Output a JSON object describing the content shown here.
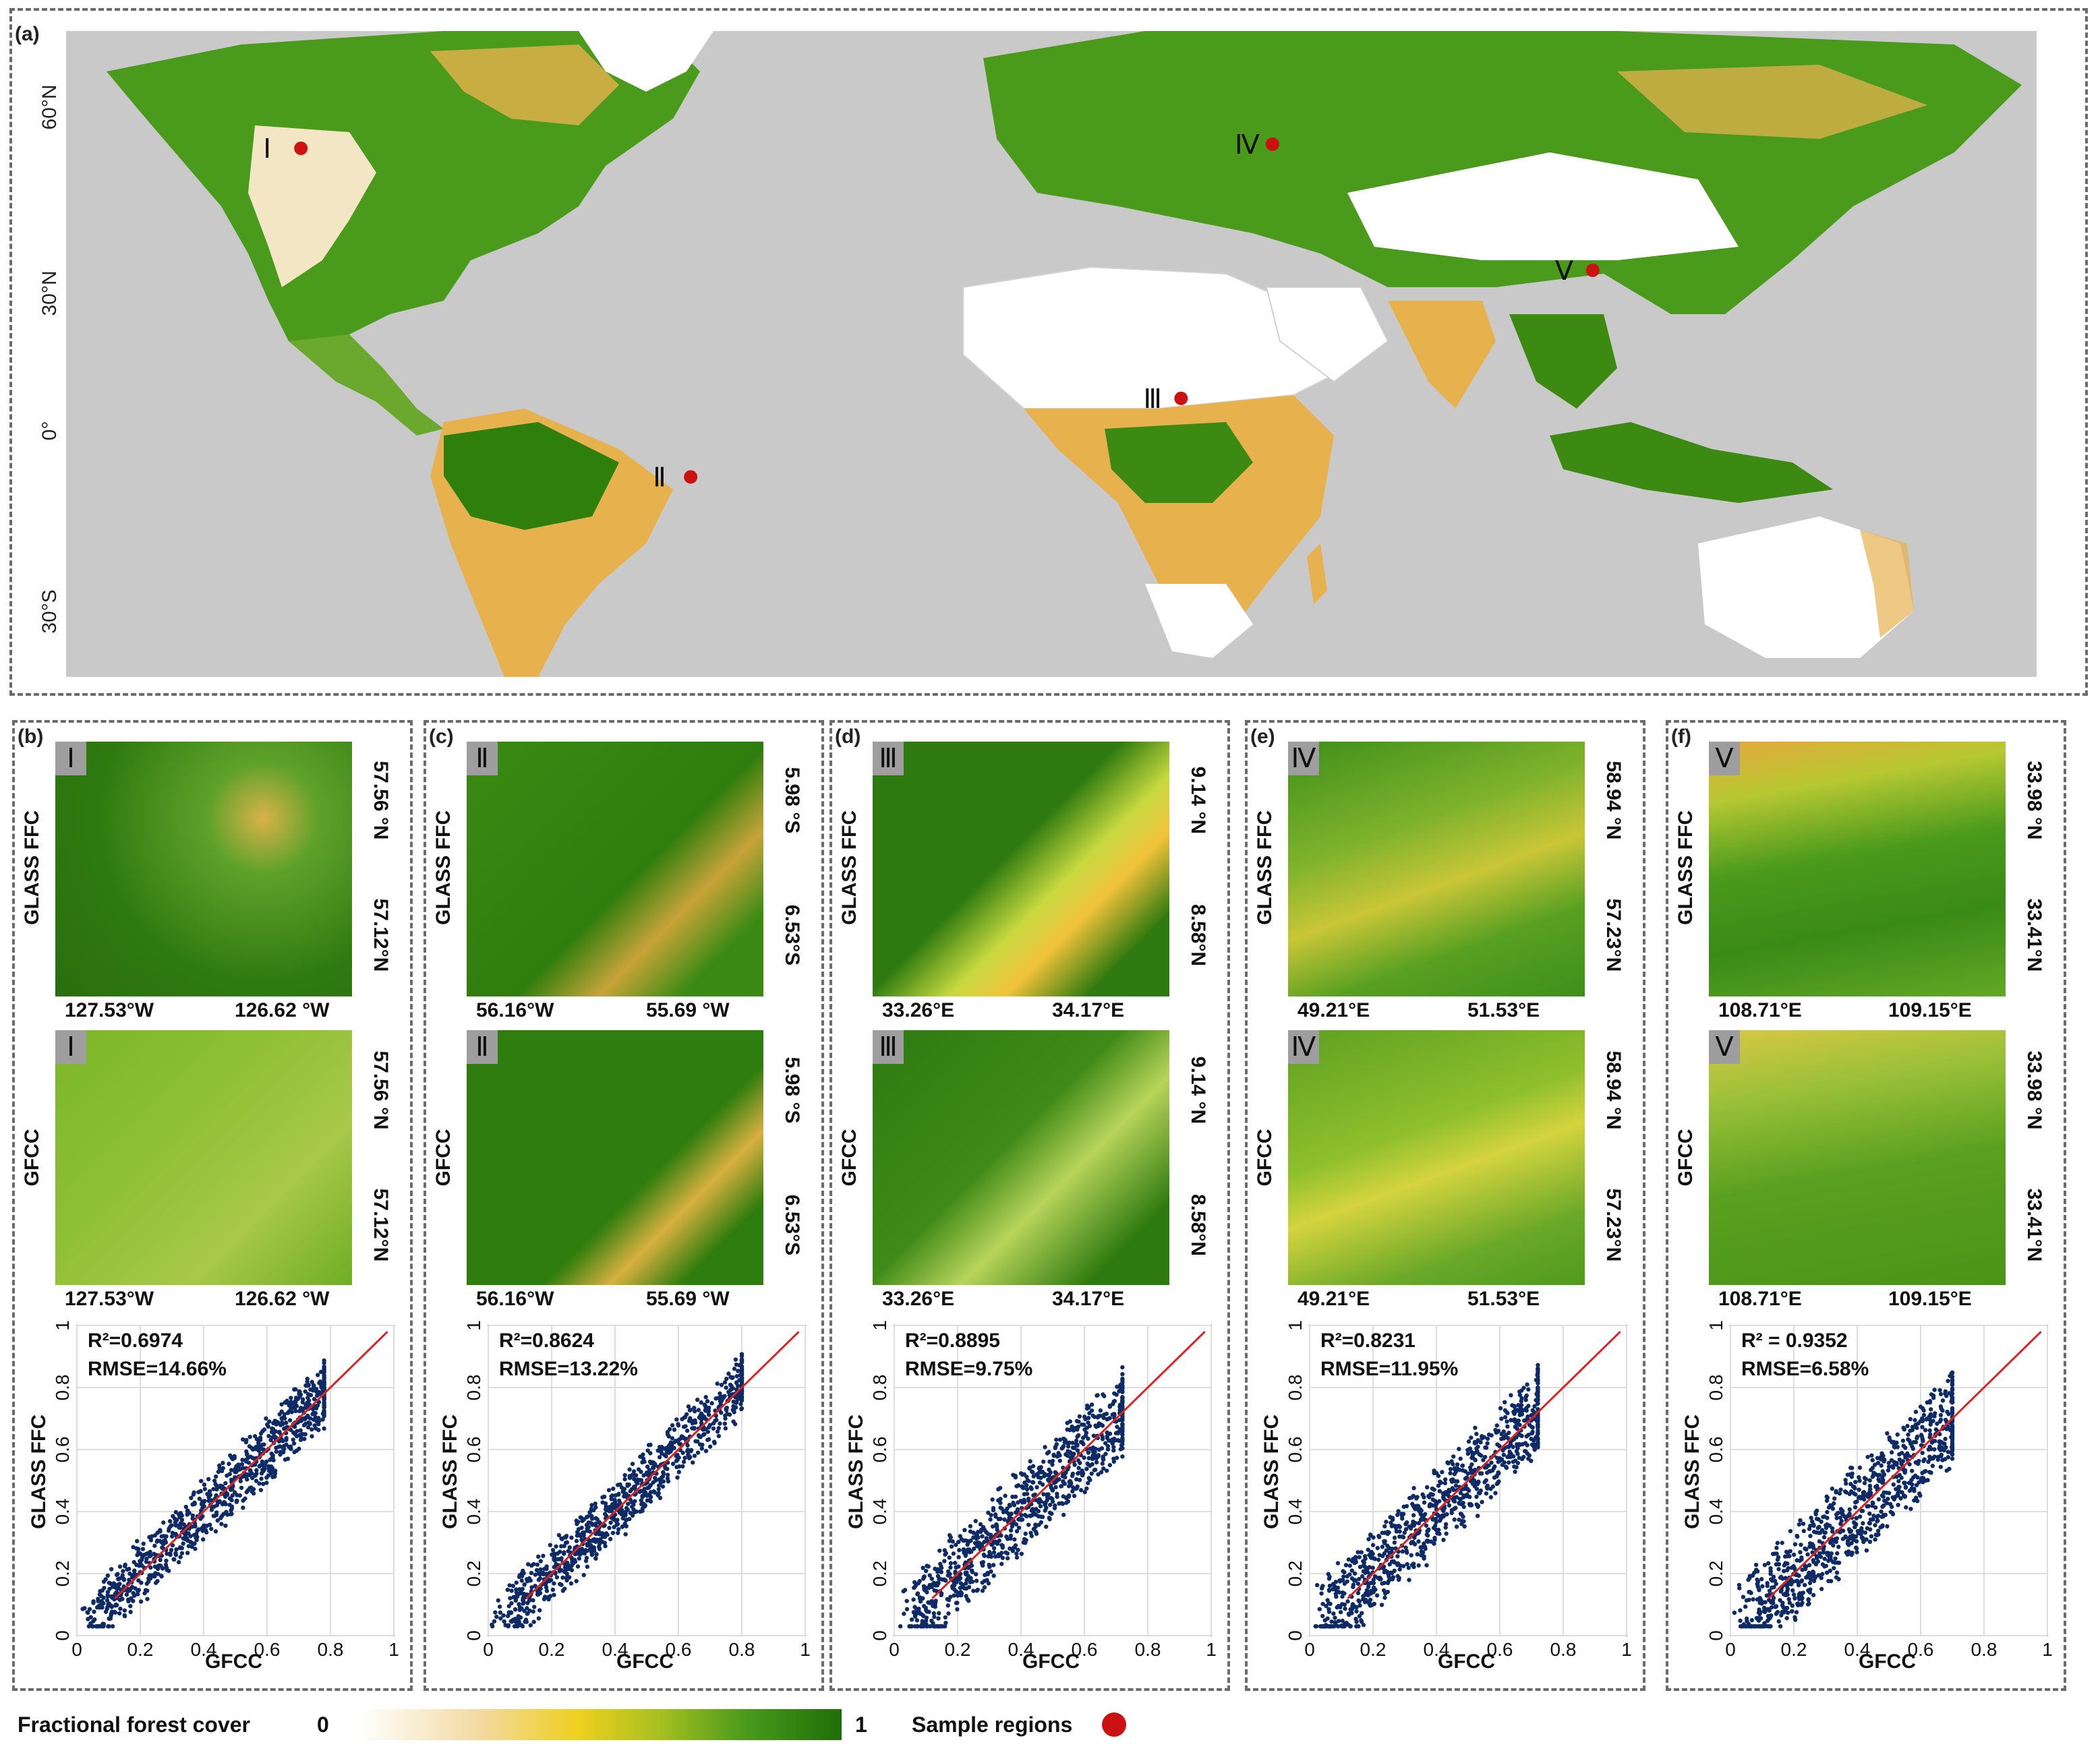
{
  "map": {
    "panel_label": "(a)",
    "lat_labels": [
      "60°N",
      "30°N",
      "0°",
      "30°S"
    ],
    "regions": [
      {
        "id": "I",
        "roman": "Ⅰ",
        "lat": 57.3,
        "lon": -127.1
      },
      {
        "id": "II",
        "roman": "Ⅱ",
        "lat": -6.3,
        "lon": -55.9
      },
      {
        "id": "III",
        "roman": "Ⅲ",
        "lat": 8.9,
        "lon": 33.7
      },
      {
        "id": "IV",
        "roman": "Ⅳ",
        "lat": 58.1,
        "lon": 50.4
      },
      {
        "id": "V",
        "roman": "Ⅴ",
        "lat": 33.7,
        "lon": 108.9
      }
    ]
  },
  "panels": [
    {
      "label": "(b)",
      "roman": "Ⅰ",
      "top_ylabel": "GLASS FFC",
      "bottom_ylabel": "GFCC",
      "lat_top": "57.56 °N",
      "lat_bottom": "57.12°N",
      "lon_left": "127.53°W",
      "lon_right": "126.62 °W",
      "r2": "R²=0.6974",
      "rmse": "RMSE=14.66%"
    },
    {
      "label": "(c)",
      "roman": "Ⅱ",
      "top_ylabel": "GLASS FFC",
      "bottom_ylabel": "GFCC",
      "lat_top": "5.98 °S",
      "lat_bottom": "6.53°S",
      "lon_left": "56.16°W",
      "lon_right": "55.69 °W",
      "r2": "R²=0.8624",
      "rmse": "RMSE=13.22%"
    },
    {
      "label": "(d)",
      "roman": "Ⅲ",
      "top_ylabel": "GLASS FFC",
      "bottom_ylabel": "GFCC",
      "lat_top": "9.14 °N",
      "lat_bottom": "8.58°N",
      "lon_left": "33.26°E",
      "lon_right": "34.17°E",
      "r2": "R²=0.8895",
      "rmse": "RMSE=9.75%"
    },
    {
      "label": "(e)",
      "roman": "Ⅳ",
      "top_ylabel": "GLASS FFC",
      "bottom_ylabel": "GFCC",
      "lat_top": "58.94 °N",
      "lat_bottom": "57.23°N",
      "lon_left": "49.21°E",
      "lon_right": "51.53°E",
      "r2": "R²=0.8231",
      "rmse": "RMSE=11.95%"
    },
    {
      "label": "(f)",
      "roman": "Ⅴ",
      "top_ylabel": "GLASS FFC",
      "bottom_ylabel": "GFCC",
      "lat_top": "33.98 °N",
      "lat_bottom": "33.41°N",
      "lon_left": "108.71°E",
      "lon_right": "109.15°E",
      "r2": "R² = 0.9352",
      "rmse": "RMSE=6.58%"
    }
  ],
  "scatter": {
    "xlabel": "GFCC",
    "ylabel": "GLASS FFC",
    "ticks": [
      "0",
      "0.2",
      "0.4",
      "0.6",
      "0.8",
      "1"
    ],
    "xlim": [
      0,
      1
    ],
    "ylim": [
      0,
      1
    ]
  },
  "legend": {
    "title": "Fractional forest cover",
    "min": "0",
    "max": "1",
    "samples_label": "Sample regions"
  },
  "colors": {
    "ocean": "#c9c9c9",
    "forest": "#3d8a12",
    "sparse": "#e7b24e",
    "sample_dot": "#cc1111",
    "point": "#0e2b66",
    "line": "#dd2222"
  }
}
